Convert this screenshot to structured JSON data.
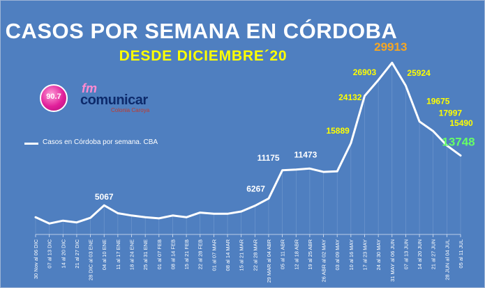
{
  "title": "CASOS POR SEMANA EN CÓRDOBA",
  "subtitle": "DESDE DICIEMBRE´20",
  "logo": {
    "frequency": "90.7",
    "fm": "fm",
    "name": "comunicar",
    "tagline": "Colonia Caroya"
  },
  "colors": {
    "background": "#4f7fc0",
    "line": "#ffffff",
    "title": "#ffffff",
    "subtitle": "#ffff00",
    "peak_label": "#f5a623",
    "last_label": "#66ff66",
    "data_label_default": "#ffff00"
  },
  "chart_data": {
    "type": "line",
    "title": "CASOS POR SEMANA EN CÓRDOBA",
    "subtitle": "DESDE DICIEMBRE´20",
    "legend": "top-left",
    "grid": true,
    "ylim": [
      0,
      32000
    ],
    "categories": [
      "30 Nov al 06 DIC",
      "07 al 13 DIC",
      "14 al 20 DIC",
      "21 al 27 DIC",
      "28 DIC al 03 ENE",
      "04 al 10 ENE",
      "11 al 17 ENE",
      "18 al 24 ENE",
      "25 al 31 ENE",
      "01 al 07 FEB",
      "08 al 14 FEB",
      "15 al 21 FEB",
      "22 al 28 FEB",
      "01 al 07 MAR",
      "08 al 14 MAR",
      "15 al 21 MAR",
      "22 al 28 MAR",
      "29 MAR al 04 ABR",
      "05 al 11 ABR",
      "12 al 18 ABR",
      "19 al 25 ABR",
      "26 ABR al 02 MAY",
      "03 al 09 MAY",
      "10 al 16 MAY",
      "17 al 23 MAY",
      "24 al 30 MAY",
      "31 MAY al 06 JUN",
      "07 al 13 JUN",
      "14 al 20 JUN",
      "21 al 27 JUN",
      "28 JUN al 04 JUL",
      "05 al 11 JUL"
    ],
    "series": [
      {
        "name": "Casos en Córdoba por semana. CBA",
        "values": [
          3000,
          1900,
          2400,
          2100,
          2900,
          5067,
          3700,
          3300,
          3000,
          2800,
          3300,
          3000,
          3800,
          3600,
          3600,
          4000,
          5000,
          6267,
          11175,
          11300,
          11473,
          10900,
          11000,
          15889,
          24132,
          26903,
          29913,
          25924,
          19675,
          17997,
          15490,
          13748
        ]
      }
    ],
    "data_labels": [
      {
        "index": 5,
        "text": "5067",
        "color": "#ffffff"
      },
      {
        "index": 17,
        "text": "6267",
        "color": "#ffffff"
      },
      {
        "index": 18,
        "text": "11175",
        "color": "#ffffff"
      },
      {
        "index": 20,
        "text": "11473",
        "color": "#ffffff"
      },
      {
        "index": 23,
        "text": "15889",
        "color": "#ffff00"
      },
      {
        "index": 24,
        "text": "24132",
        "color": "#ffff00"
      },
      {
        "index": 25,
        "text": "26903",
        "color": "#ffff00"
      },
      {
        "index": 26,
        "text": "29913",
        "color": "#f5a623"
      },
      {
        "index": 27,
        "text": "25924",
        "color": "#ffff00"
      },
      {
        "index": 28,
        "text": "19675",
        "color": "#ffff00"
      },
      {
        "index": 29,
        "text": "17997",
        "color": "#ffff00"
      },
      {
        "index": 30,
        "text": "15490",
        "color": "#ffff00"
      },
      {
        "index": 31,
        "text": "13748",
        "color": "#66ff66"
      }
    ]
  }
}
